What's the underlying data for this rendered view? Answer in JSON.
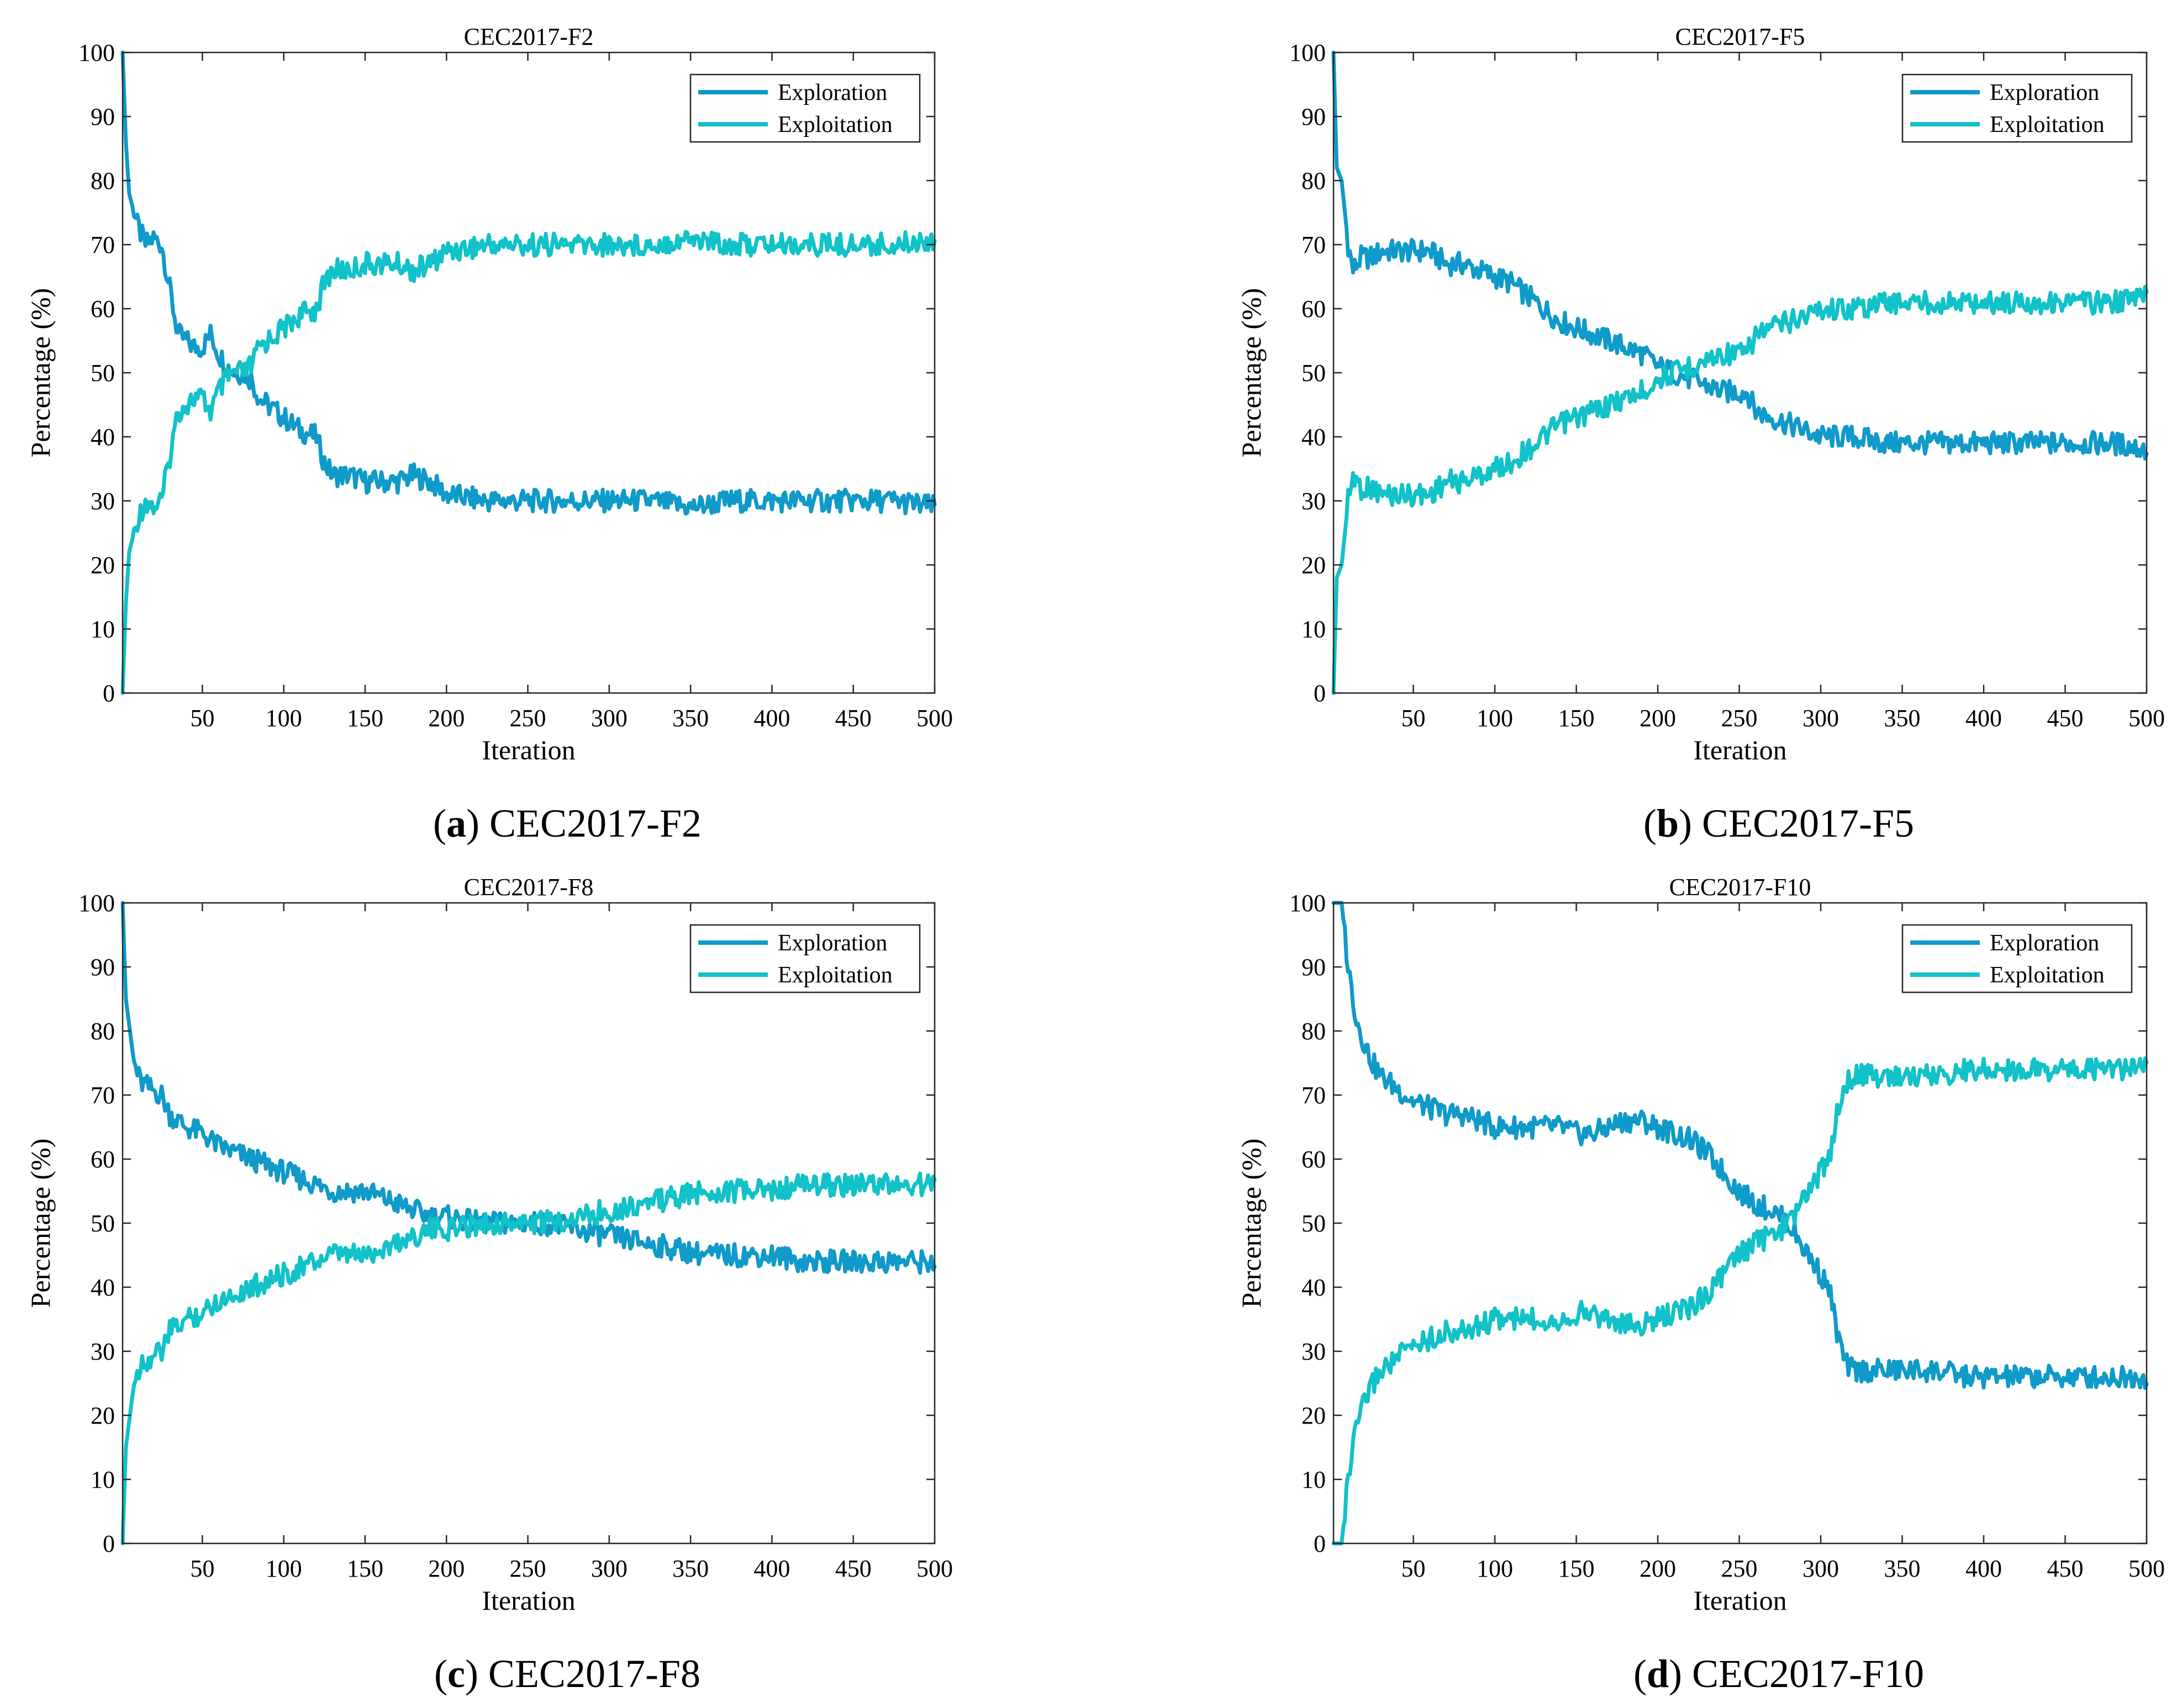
{
  "colors": {
    "exploration": "#0f9ac9",
    "exploitation": "#11c2c8"
  },
  "chart_data": [
    {
      "type": "line",
      "title": "CEC2017-F2",
      "caption_letter": "a",
      "caption_text": " CEC2017-F2",
      "xlabel": "Iteration",
      "ylabel": "Percentage (%)",
      "xlim": [
        1,
        500
      ],
      "ylim": [
        0,
        100
      ],
      "xticks": [
        50,
        100,
        150,
        200,
        250,
        300,
        350,
        400,
        450,
        500
      ],
      "yticks": [
        0,
        10,
        20,
        30,
        40,
        50,
        60,
        70,
        80,
        90,
        100
      ],
      "grid": false,
      "legend": "top-right",
      "series": [
        {
          "name": "Exploration",
          "x": [
            1,
            3,
            5,
            10,
            15,
            20,
            25,
            30,
            35,
            40,
            45,
            50,
            55,
            60,
            65,
            70,
            75,
            80,
            85,
            90,
            95,
            100,
            110,
            120,
            125,
            130,
            140,
            150,
            160,
            170,
            180,
            190,
            200,
            225,
            250,
            275,
            300,
            325,
            350,
            375,
            400,
            425,
            450,
            475,
            500
          ],
          "y": [
            100,
            86,
            78,
            73,
            70,
            71,
            70,
            63,
            56,
            55,
            54,
            54,
            56,
            53,
            51,
            50,
            50,
            49,
            46,
            45,
            44,
            43,
            41,
            40,
            36,
            34,
            34,
            33,
            33,
            33,
            34,
            33,
            31,
            30,
            30,
            30,
            30,
            30,
            29,
            30,
            30,
            30,
            30,
            30,
            29
          ]
        },
        {
          "name": "Exploitation",
          "x": [
            1,
            3,
            5,
            10,
            15,
            20,
            25,
            30,
            35,
            40,
            45,
            50,
            55,
            60,
            65,
            70,
            75,
            80,
            85,
            90,
            95,
            100,
            110,
            120,
            125,
            130,
            140,
            150,
            160,
            170,
            180,
            190,
            200,
            225,
            250,
            275,
            300,
            325,
            350,
            375,
            400,
            425,
            450,
            475,
            500
          ],
          "y": [
            0,
            14,
            22,
            27,
            30,
            29,
            30,
            37,
            44,
            45,
            46,
            46,
            44,
            47,
            49,
            50,
            50,
            51,
            54,
            55,
            56,
            57,
            59,
            60,
            64,
            66,
            66,
            67,
            67,
            67,
            66,
            67,
            69,
            70,
            70,
            70,
            70,
            70,
            71,
            70,
            70,
            70,
            70,
            70,
            71
          ]
        }
      ]
    },
    {
      "type": "line",
      "title": "CEC2017-F5",
      "caption_letter": "b",
      "caption_text": " CEC2017-F5",
      "xlabel": "Iteration",
      "ylabel": "Percentage (%)",
      "xlim": [
        1,
        500
      ],
      "ylim": [
        0,
        100
      ],
      "xticks": [
        50,
        100,
        150,
        200,
        250,
        300,
        350,
        400,
        450,
        500
      ],
      "yticks": [
        0,
        10,
        20,
        30,
        40,
        50,
        60,
        70,
        80,
        90,
        100
      ],
      "grid": false,
      "legend": "top-right",
      "series": [
        {
          "name": "Exploration",
          "x": [
            1,
            3,
            6,
            10,
            13,
            18,
            25,
            30,
            40,
            50,
            60,
            70,
            80,
            90,
            100,
            110,
            120,
            130,
            140,
            150,
            160,
            170,
            180,
            190,
            200,
            210,
            220,
            230,
            240,
            250,
            255,
            260,
            270,
            280,
            290,
            300,
            320,
            340,
            360,
            380,
            400,
            420,
            440,
            460,
            480,
            500
          ],
          "y": [
            100,
            82,
            80,
            70,
            66,
            68,
            68,
            69,
            69,
            69,
            69,
            67,
            67,
            66,
            65,
            64,
            62,
            60,
            58,
            57,
            56,
            55,
            54,
            53,
            51,
            50,
            49,
            48,
            47,
            47,
            47,
            44,
            43,
            42,
            41,
            40,
            40,
            39,
            39,
            39,
            39,
            39,
            39,
            39,
            39,
            38
          ]
        },
        {
          "name": "Exploitation",
          "x": [
            1,
            3,
            6,
            10,
            13,
            18,
            25,
            30,
            40,
            50,
            60,
            70,
            80,
            90,
            100,
            110,
            120,
            130,
            140,
            150,
            160,
            170,
            180,
            190,
            200,
            210,
            220,
            230,
            240,
            250,
            255,
            260,
            270,
            280,
            290,
            300,
            320,
            340,
            360,
            380,
            400,
            420,
            440,
            460,
            480,
            500
          ],
          "y": [
            0,
            18,
            20,
            30,
            34,
            32,
            32,
            31,
            31,
            31,
            31,
            33,
            33,
            34,
            35,
            36,
            38,
            40,
            42,
            43,
            44,
            45,
            46,
            47,
            49,
            50,
            51,
            52,
            53,
            53,
            53,
            56,
            57,
            58,
            59,
            60,
            60,
            61,
            61,
            61,
            61,
            61,
            61,
            61,
            61,
            62
          ]
        }
      ]
    },
    {
      "type": "line",
      "title": "CEC2017-F8",
      "caption_letter": "c",
      "caption_text": " CEC2017-F8",
      "xlabel": "Iteration",
      "ylabel": "Percentage (%)",
      "xlim": [
        1,
        500
      ],
      "ylim": [
        0,
        100
      ],
      "xticks": [
        50,
        100,
        150,
        200,
        250,
        300,
        350,
        400,
        450,
        500
      ],
      "yticks": [
        0,
        10,
        20,
        30,
        40,
        50,
        60,
        70,
        80,
        90,
        100
      ],
      "grid": false,
      "legend": "top-right",
      "series": [
        {
          "name": "Exploration",
          "x": [
            1,
            3,
            5,
            8,
            12,
            18,
            25,
            30,
            40,
            50,
            60,
            70,
            80,
            90,
            100,
            110,
            120,
            130,
            140,
            150,
            160,
            170,
            180,
            190,
            200,
            220,
            240,
            260,
            280,
            300,
            320,
            340,
            360,
            380,
            400,
            420,
            440,
            460,
            480,
            500
          ],
          "y": [
            100,
            85,
            81,
            75,
            72,
            71,
            70,
            67,
            65,
            64,
            62,
            61,
            60,
            59,
            58,
            57,
            56,
            55,
            55,
            55,
            54,
            53,
            52,
            51,
            51,
            50,
            50,
            50,
            49,
            48,
            47,
            46,
            45,
            45,
            45,
            44,
            44,
            44,
            44,
            44
          ]
        },
        {
          "name": "Exploitation",
          "x": [
            1,
            3,
            5,
            8,
            12,
            18,
            25,
            30,
            40,
            50,
            60,
            70,
            80,
            90,
            100,
            110,
            120,
            130,
            140,
            150,
            160,
            170,
            180,
            190,
            200,
            220,
            240,
            260,
            280,
            300,
            320,
            340,
            360,
            380,
            400,
            420,
            440,
            460,
            480,
            500
          ],
          "y": [
            0,
            15,
            19,
            25,
            28,
            29,
            30,
            33,
            35,
            36,
            38,
            39,
            40,
            41,
            42,
            43,
            44,
            45,
            45,
            45,
            46,
            47,
            48,
            49,
            49,
            50,
            50,
            50,
            51,
            52,
            53,
            54,
            55,
            55,
            55,
            56,
            56,
            56,
            56,
            56
          ]
        }
      ]
    },
    {
      "type": "line",
      "title": "CEC2017-F10",
      "caption_letter": "d",
      "caption_text": " CEC2017-F10",
      "xlabel": "Iteration",
      "ylabel": "Percentage (%)",
      "xlim": [
        1,
        500
      ],
      "ylim": [
        0,
        100
      ],
      "xticks": [
        50,
        100,
        150,
        200,
        250,
        300,
        350,
        400,
        450,
        500
      ],
      "yticks": [
        0,
        10,
        20,
        30,
        40,
        50,
        60,
        70,
        80,
        90,
        100
      ],
      "grid": false,
      "legend": "top-right",
      "series": [
        {
          "name": "Exploration",
          "x": [
            1,
            6,
            10,
            15,
            20,
            25,
            30,
            40,
            50,
            60,
            70,
            80,
            90,
            100,
            110,
            120,
            130,
            140,
            150,
            160,
            170,
            180,
            190,
            200,
            210,
            220,
            230,
            240,
            250,
            260,
            270,
            280,
            290,
            300,
            305,
            310,
            315,
            320,
            330,
            350,
            370,
            390,
            410,
            430,
            450,
            470,
            490,
            500
          ],
          "y": [
            100,
            100,
            90,
            82,
            78,
            75,
            73,
            71,
            69,
            68,
            67,
            67,
            66,
            65,
            65,
            65,
            65,
            65,
            64,
            64,
            65,
            66,
            66,
            65,
            64,
            63,
            61,
            58,
            55,
            53,
            52,
            50,
            46,
            42,
            40,
            33,
            28,
            27,
            27,
            27,
            27,
            26,
            26,
            26,
            26,
            26,
            26,
            26
          ]
        },
        {
          "name": "Exploitation",
          "x": [
            1,
            6,
            10,
            15,
            20,
            25,
            30,
            40,
            50,
            60,
            70,
            80,
            90,
            100,
            110,
            120,
            130,
            140,
            150,
            160,
            170,
            180,
            190,
            200,
            210,
            220,
            230,
            240,
            250,
            260,
            270,
            280,
            290,
            300,
            305,
            310,
            315,
            320,
            330,
            350,
            370,
            390,
            410,
            430,
            450,
            470,
            490,
            500
          ],
          "y": [
            0,
            0,
            10,
            18,
            22,
            25,
            27,
            29,
            31,
            32,
            33,
            33,
            34,
            35,
            35,
            35,
            35,
            35,
            36,
            36,
            35,
            34,
            34,
            35,
            36,
            37,
            39,
            42,
            45,
            47,
            48,
            50,
            54,
            58,
            60,
            67,
            72,
            73,
            73,
            73,
            73,
            74,
            74,
            74,
            74,
            74,
            74,
            74
          ]
        }
      ]
    }
  ]
}
